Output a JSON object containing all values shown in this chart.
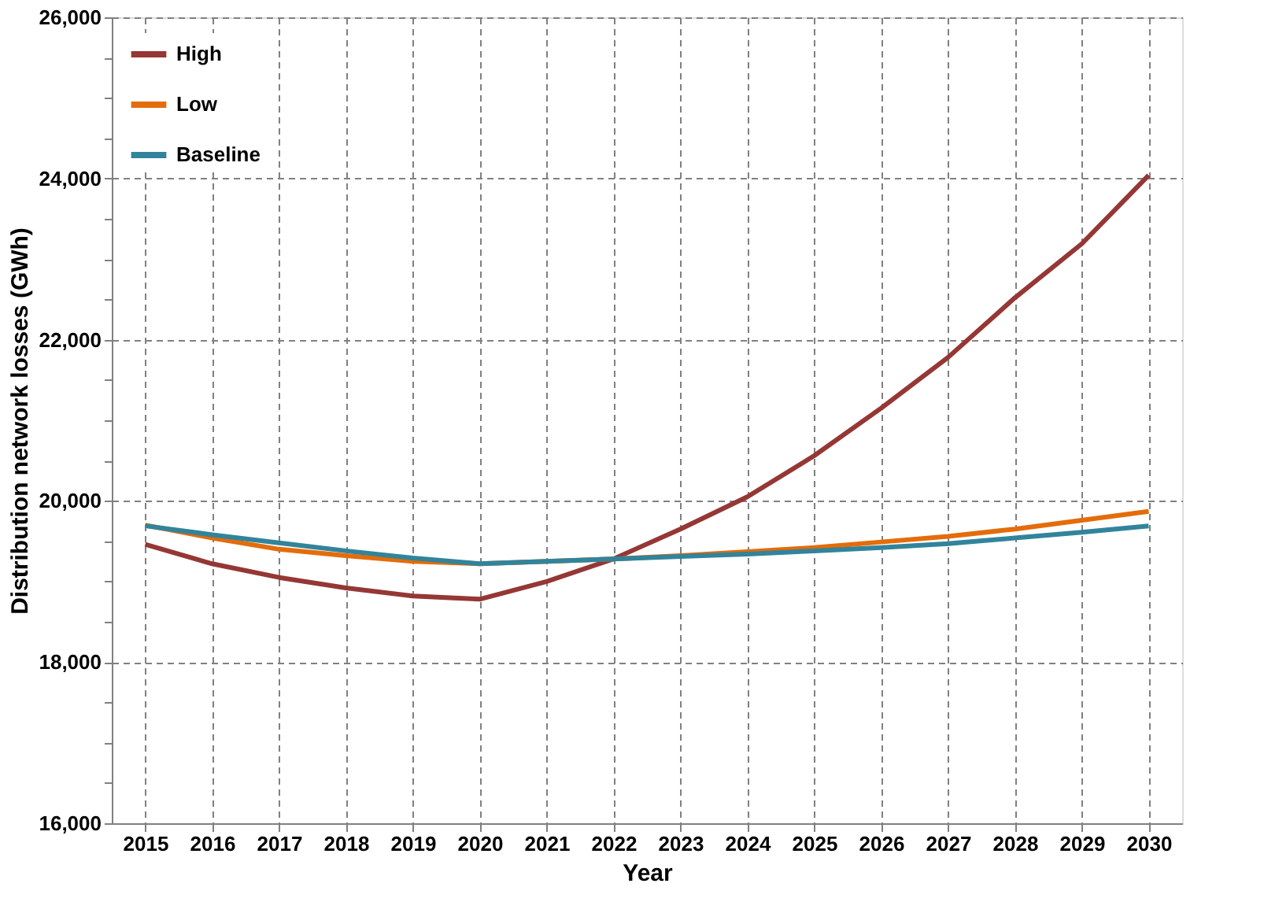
{
  "chart_data": {
    "type": "line",
    "xlabel": "Year",
    "ylabel": "Distribution network losses (GWh)",
    "categories": [
      "2015",
      "2016",
      "2017",
      "2018",
      "2019",
      "2020",
      "2021",
      "2022",
      "2023",
      "2024",
      "2025",
      "2026",
      "2027",
      "2028",
      "2029",
      "2030"
    ],
    "series": [
      {
        "name": "High",
        "color": "#953735",
        "values": [
          19460,
          19220,
          19050,
          18920,
          18820,
          18780,
          19000,
          19280,
          19650,
          20050,
          20560,
          21150,
          21780,
          22520,
          23190,
          24040
        ]
      },
      {
        "name": "Low",
        "color": "#e46c0a",
        "values": [
          19700,
          19540,
          19400,
          19320,
          19250,
          19220,
          19250,
          19280,
          19320,
          19370,
          19420,
          19490,
          19560,
          19650,
          19760,
          19870
        ]
      },
      {
        "name": "Baseline",
        "color": "#31849b",
        "values": [
          19690,
          19580,
          19480,
          19380,
          19290,
          19220,
          19250,
          19280,
          19310,
          19340,
          19380,
          19420,
          19470,
          19540,
          19610,
          19690
        ]
      }
    ],
    "ylim": [
      16000,
      26000
    ],
    "yticks": [
      {
        "value": 16000,
        "label": "16,000"
      },
      {
        "value": 16500,
        "label": null
      },
      {
        "value": 17000,
        "label": null
      },
      {
        "value": 17500,
        "label": null
      },
      {
        "value": 18000,
        "label": "18,000"
      },
      {
        "value": 18500,
        "label": null
      },
      {
        "value": 19000,
        "label": null
      },
      {
        "value": 19500,
        "label": null
      },
      {
        "value": 20000,
        "label": "20,000"
      },
      {
        "value": 20500,
        "label": null
      },
      {
        "value": 21000,
        "label": null
      },
      {
        "value": 21500,
        "label": null
      },
      {
        "value": 22000,
        "label": "22,000"
      },
      {
        "value": 22500,
        "label": null
      },
      {
        "value": 23000,
        "label": null
      },
      {
        "value": 23500,
        "label": null
      },
      {
        "value": 24000,
        "label": "24,000"
      },
      {
        "value": 24500,
        "label": null
      },
      {
        "value": 25000,
        "label": null
      },
      {
        "value": 25500,
        "label": null
      },
      {
        "value": 26000,
        "label": "26,000"
      }
    ],
    "grid": true,
    "legend": "top left",
    "marker": "none",
    "line_style": "solid"
  }
}
